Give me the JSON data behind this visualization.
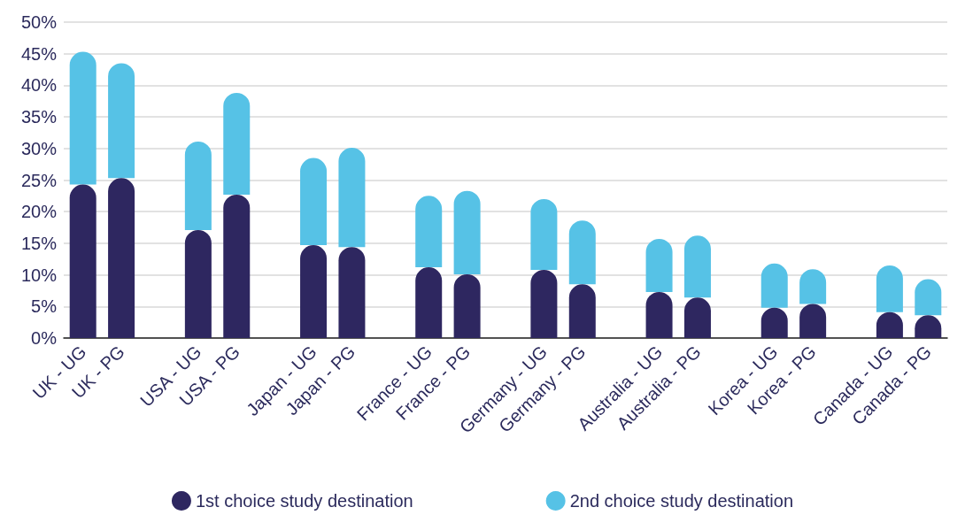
{
  "chart_data": {
    "type": "bar",
    "stacked": true,
    "categories": [
      "UK - UG",
      "UK - PG",
      null,
      "USA - UG",
      "USA - PG",
      null,
      "Japan - UG",
      "Japan - PG",
      null,
      "France - UG",
      "France - PG",
      null,
      "Germany - UG",
      "Germany - PG",
      null,
      "Australia - UG",
      "Australia - PG",
      null,
      "Korea - UG",
      "Korea - PG",
      null,
      "Canada - UG",
      "Canada - PG"
    ],
    "series": [
      {
        "name": "1st choice study destination",
        "color": "#2e2760",
        "values": [
          24.3,
          25.3,
          null,
          17.1,
          22.7,
          null,
          14.7,
          14.4,
          null,
          11.2,
          10.1,
          null,
          10.8,
          8.5,
          null,
          7.3,
          6.4,
          null,
          4.8,
          5.4,
          null,
          4.1,
          3.6
        ]
      },
      {
        "name": "2nd choice study destination",
        "color": "#56c2e6",
        "values": [
          21.0,
          18.2,
          null,
          14.0,
          16.1,
          null,
          13.8,
          15.7,
          null,
          11.3,
          13.2,
          null,
          11.2,
          10.1,
          null,
          8.4,
          9.8,
          null,
          7.0,
          5.5,
          null,
          7.4,
          5.7
        ]
      }
    ],
    "ylim": [
      0,
      50
    ],
    "yticks": [
      {
        "value": 0,
        "label": "0%"
      },
      {
        "value": 5,
        "label": "5%"
      },
      {
        "value": 10,
        "label": "10%"
      },
      {
        "value": 15,
        "label": "15%"
      },
      {
        "value": 20,
        "label": "20%"
      },
      {
        "value": 25,
        "label": "25%"
      },
      {
        "value": 30,
        "label": "30%"
      },
      {
        "value": 35,
        "label": "35%"
      },
      {
        "value": 40,
        "label": "40%"
      },
      {
        "value": 45,
        "label": "45%"
      },
      {
        "value": 50,
        "label": "50%"
      }
    ],
    "grid": "y",
    "legend": "bottom"
  }
}
